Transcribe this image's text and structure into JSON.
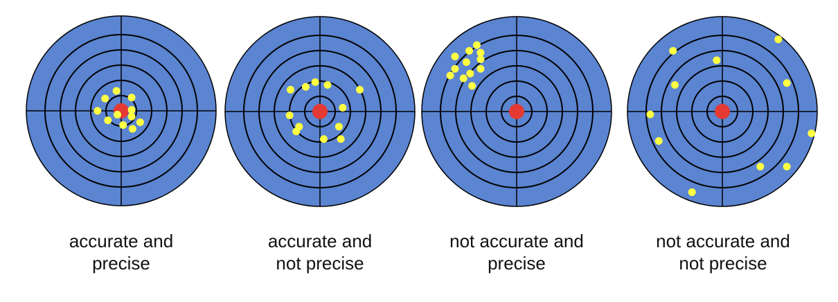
{
  "colors": {
    "target_fill": "#5b84d1",
    "ring_line": "#000000",
    "bullseye": "#e43a33",
    "shot": "#ffff44"
  },
  "ring_count": 5,
  "panels": [
    {
      "caption": [
        "accurate and",
        "precise"
      ],
      "shots": [
        [
          -0.05,
          -0.21
        ],
        [
          -0.17,
          -0.13
        ],
        [
          0.11,
          -0.14
        ],
        [
          -0.25,
          0.0
        ],
        [
          0.11,
          -0.01
        ],
        [
          0.11,
          0.06
        ],
        [
          -0.14,
          0.1
        ],
        [
          0.2,
          0.12
        ],
        [
          0.02,
          0.15
        ],
        [
          0.12,
          0.19
        ],
        [
          -0.04,
          0.04
        ]
      ]
    },
    {
      "caption": [
        "accurate and",
        "not precise"
      ],
      "shots": [
        [
          -0.31,
          -0.23
        ],
        [
          -0.15,
          -0.26
        ],
        [
          -0.05,
          -0.31
        ],
        [
          0.08,
          -0.28
        ],
        [
          0.42,
          -0.23
        ],
        [
          0.24,
          -0.04
        ],
        [
          -0.32,
          0.04
        ],
        [
          -0.22,
          0.16
        ],
        [
          0.2,
          0.16
        ],
        [
          -0.25,
          0.21
        ],
        [
          0.04,
          0.29
        ],
        [
          0.22,
          0.29
        ]
      ]
    },
    {
      "caption": [
        "not accurate and",
        "precise"
      ],
      "shots": [
        [
          -0.65,
          -0.58
        ],
        [
          -0.5,
          -0.64
        ],
        [
          -0.38,
          -0.55
        ],
        [
          -0.38,
          -0.62
        ],
        [
          -0.42,
          -0.7
        ],
        [
          -0.53,
          -0.52
        ],
        [
          -0.65,
          -0.45
        ],
        [
          -0.7,
          -0.38
        ],
        [
          -0.38,
          -0.45
        ],
        [
          -0.49,
          -0.4
        ],
        [
          -0.56,
          -0.35
        ],
        [
          -0.47,
          -0.27
        ]
      ]
    },
    {
      "caption": [
        "not accurate and",
        "not precise"
      ],
      "shots": [
        [
          -0.52,
          -0.64
        ],
        [
          -0.5,
          -0.28
        ],
        [
          -0.06,
          -0.54
        ],
        [
          0.59,
          -0.76
        ],
        [
          0.68,
          -0.3
        ],
        [
          -0.76,
          0.03
        ],
        [
          0.94,
          0.23
        ],
        [
          -0.67,
          0.31
        ],
        [
          0.4,
          0.58
        ],
        [
          0.68,
          0.58
        ],
        [
          -0.32,
          0.85
        ]
      ]
    }
  ]
}
